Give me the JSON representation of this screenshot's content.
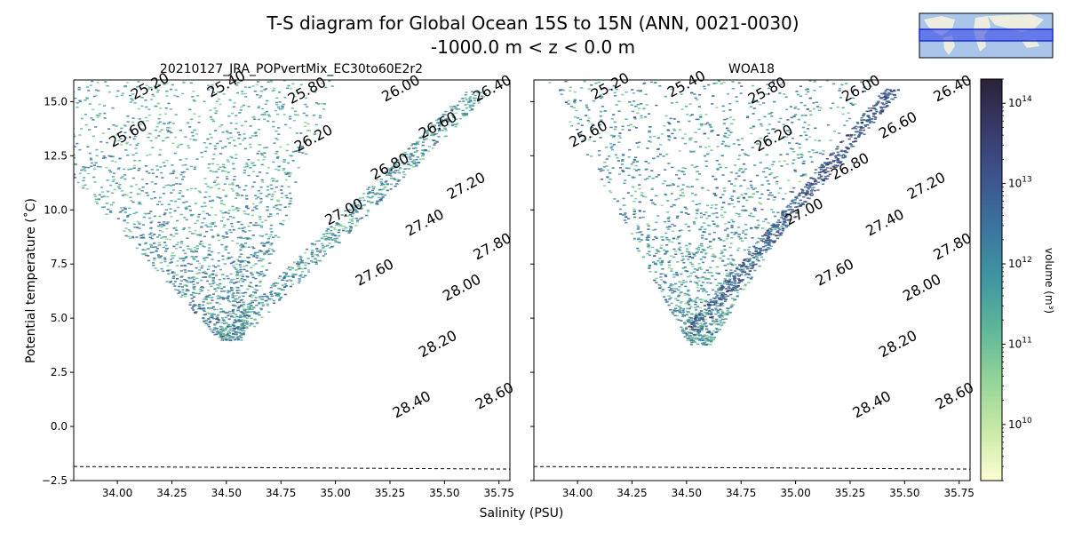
{
  "title_line1": "T-S diagram for Global Ocean 15S to 15N (ANN, 0021-0030)",
  "title_line2": "-1000.0 m < z < 0.0 m",
  "xlabel": "Salinity (PSU)",
  "ylabel": "Potential temperature (˚C)",
  "colorbar_label": "volume (m³)",
  "colors": {
    "background": "#ffffff",
    "contour": "#000000",
    "colormap": [
      "#fdfed3",
      "#c9eaa7",
      "#93d498",
      "#5fb79a",
      "#3f97a1",
      "#3b769f",
      "#3d558e",
      "#383a6b",
      "#2a2238"
    ]
  },
  "chart_data": [
    {
      "type": "heatmap",
      "title": "20210127_JRA_POPvertMix_EC30to60E2r2",
      "xlim": [
        33.8,
        35.8
      ],
      "ylim": [
        -2.5,
        16.0
      ],
      "x_ticks": [
        34.0,
        34.25,
        34.5,
        34.75,
        35.0,
        35.25,
        35.5,
        35.75
      ],
      "x_tick_labels": [
        "34.00",
        "34.25",
        "34.50",
        "34.75",
        "35.00",
        "35.25",
        "35.50",
        "35.75"
      ],
      "y_ticks": [
        -2.5,
        0.0,
        2.5,
        5.0,
        7.5,
        10.0,
        12.5,
        15.0
      ],
      "y_tick_labels": [
        "−2.5",
        "0.0",
        "2.5",
        "5.0",
        "7.5",
        "10.0",
        "12.5",
        "15.0"
      ],
      "density_contours": [
        25.2,
        25.4,
        25.6,
        25.8,
        26.0,
        26.2,
        26.4,
        26.6,
        26.8,
        27.0,
        27.2,
        27.4,
        27.6,
        27.8,
        28.0,
        28.2,
        28.4,
        28.6
      ],
      "density_labels": [
        {
          "text": "25.20",
          "s": 34.15,
          "t": 15.7
        },
        {
          "text": "25.40",
          "s": 34.5,
          "t": 15.8
        },
        {
          "text": "25.60",
          "s": 34.05,
          "t": 13.5
        },
        {
          "text": "25.80",
          "s": 34.87,
          "t": 15.5
        },
        {
          "text": "26.00",
          "s": 35.3,
          "t": 15.6
        },
        {
          "text": "26.20",
          "s": 34.9,
          "t": 13.3
        },
        {
          "text": "26.40",
          "s": 35.72,
          "t": 15.6
        },
        {
          "text": "26.60",
          "s": 35.47,
          "t": 13.9
        },
        {
          "text": "26.80",
          "s": 35.25,
          "t": 12.0
        },
        {
          "text": "27.00",
          "s": 35.04,
          "t": 9.9
        },
        {
          "text": "27.20",
          "s": 35.6,
          "t": 11.1
        },
        {
          "text": "27.40",
          "s": 35.41,
          "t": 9.4
        },
        {
          "text": "27.60",
          "s": 35.18,
          "t": 7.1
        },
        {
          "text": "27.80",
          "s": 35.72,
          "t": 8.3
        },
        {
          "text": "28.00",
          "s": 35.58,
          "t": 6.4
        },
        {
          "text": "28.20",
          "s": 35.47,
          "t": 3.8
        },
        {
          "text": "28.40",
          "s": 35.35,
          "t": 1.0
        },
        {
          "text": "28.60",
          "s": 35.73,
          "t": 1.4
        }
      ],
      "freezing_line": [
        {
          "s": 33.8,
          "t": -1.85
        },
        {
          "s": 35.8,
          "t": -1.97
        }
      ]
    },
    {
      "type": "heatmap",
      "title": "WOA18",
      "xlim": [
        33.8,
        35.8
      ],
      "ylim": [
        -2.5,
        16.0
      ],
      "x_ticks": [
        34.0,
        34.25,
        34.5,
        34.75,
        35.0,
        35.25,
        35.5,
        35.75
      ],
      "x_tick_labels": [
        "34.00",
        "34.25",
        "34.50",
        "34.75",
        "35.00",
        "35.25",
        "35.50",
        "35.75"
      ],
      "y_ticks": [
        -2.5,
        0.0,
        2.5,
        5.0,
        7.5,
        10.0,
        12.5,
        15.0
      ],
      "density_contours": [
        25.2,
        25.4,
        25.6,
        25.8,
        26.0,
        26.2,
        26.4,
        26.6,
        26.8,
        27.0,
        27.2,
        27.4,
        27.6,
        27.8,
        28.0,
        28.2,
        28.4,
        28.6
      ],
      "density_labels": [
        {
          "text": "25.20",
          "s": 34.15,
          "t": 15.7
        },
        {
          "text": "25.40",
          "s": 34.5,
          "t": 15.8
        },
        {
          "text": "25.60",
          "s": 34.05,
          "t": 13.5
        },
        {
          "text": "25.80",
          "s": 34.87,
          "t": 15.5
        },
        {
          "text": "26.00",
          "s": 35.3,
          "t": 15.6
        },
        {
          "text": "26.20",
          "s": 34.9,
          "t": 13.3
        },
        {
          "text": "26.40",
          "s": 35.72,
          "t": 15.6
        },
        {
          "text": "26.60",
          "s": 35.47,
          "t": 13.9
        },
        {
          "text": "26.80",
          "s": 35.25,
          "t": 12.0
        },
        {
          "text": "27.00",
          "s": 35.04,
          "t": 9.9
        },
        {
          "text": "27.20",
          "s": 35.6,
          "t": 11.1
        },
        {
          "text": "27.40",
          "s": 35.41,
          "t": 9.4
        },
        {
          "text": "27.60",
          "s": 35.18,
          "t": 7.1
        },
        {
          "text": "27.80",
          "s": 35.72,
          "t": 8.3
        },
        {
          "text": "28.00",
          "s": 35.58,
          "t": 6.4
        },
        {
          "text": "28.20",
          "s": 35.47,
          "t": 3.8
        },
        {
          "text": "28.40",
          "s": 35.35,
          "t": 1.0
        },
        {
          "text": "28.60",
          "s": 35.73,
          "t": 1.4
        }
      ],
      "freezing_line": [
        {
          "s": 33.8,
          "t": -1.85
        },
        {
          "s": 35.8,
          "t": -1.97
        }
      ]
    }
  ],
  "colorbar": {
    "scale": "log",
    "range": [
      2000000000.0,
      200000000000000.0
    ],
    "ticks": [
      10000000000.0,
      100000000000.0,
      1000000000000.0,
      10000000000000.0,
      100000000000000.0
    ],
    "tick_labels": [
      "10^10",
      "10^11",
      "10^12",
      "10^13",
      "10^14"
    ]
  }
}
